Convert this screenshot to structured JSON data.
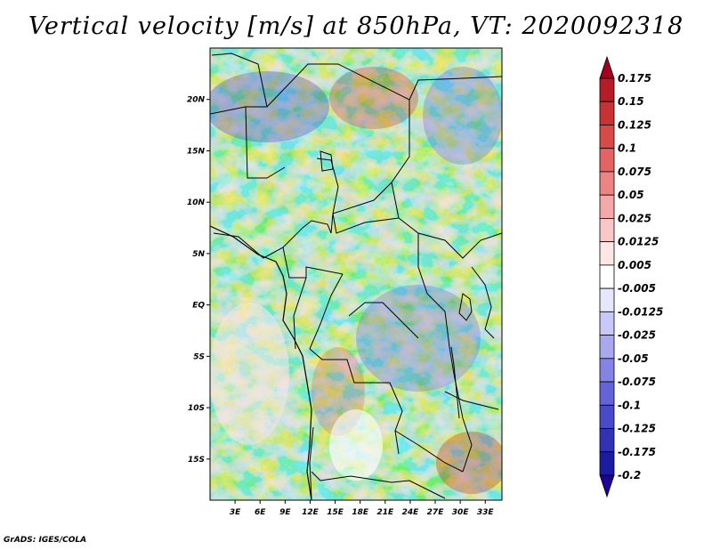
{
  "title": "Vertical velocity [m/s] at 850hPa, VT: 2020092318",
  "credit": "GrADS: IGES/COLA",
  "map": {
    "lon_range": [
      0,
      35
    ],
    "lat_range": [
      -19,
      25
    ],
    "lat_labels": [
      "20N",
      "15N",
      "10N",
      "5N",
      "EQ",
      "5S",
      "10S",
      "15S"
    ],
    "lat_values": [
      20,
      15,
      10,
      5,
      0,
      -5,
      -10,
      -15
    ],
    "lon_labels": [
      "3E",
      "6E",
      "9E",
      "12E",
      "15E",
      "18E",
      "21E",
      "24E",
      "27E",
      "30E",
      "33E"
    ],
    "lon_values": [
      3,
      6,
      9,
      12,
      15,
      18,
      21,
      24,
      27,
      30,
      33
    ]
  },
  "colorbar": {
    "labels": [
      "0.175",
      "0.15",
      "0.125",
      "0.1",
      "0.075",
      "0.05",
      "0.025",
      "0.0125",
      "0.005",
      "-0.005",
      "-0.0125",
      "-0.025",
      "-0.05",
      "-0.075",
      "-0.1",
      "-0.125",
      "-0.175",
      "-0.2"
    ],
    "colors": [
      "#a0001e",
      "#b41c28",
      "#c83232",
      "#d84a4a",
      "#e46464",
      "#ec8484",
      "#f4a8a8",
      "#f8c8c8",
      "#fce6e6",
      "#ffffff",
      "#e6e6fc",
      "#c8c8f8",
      "#a8a8f0",
      "#8484e4",
      "#6464d8",
      "#4a4ac8",
      "#3232b4",
      "#1c1ca0",
      "#1e0096"
    ]
  }
}
